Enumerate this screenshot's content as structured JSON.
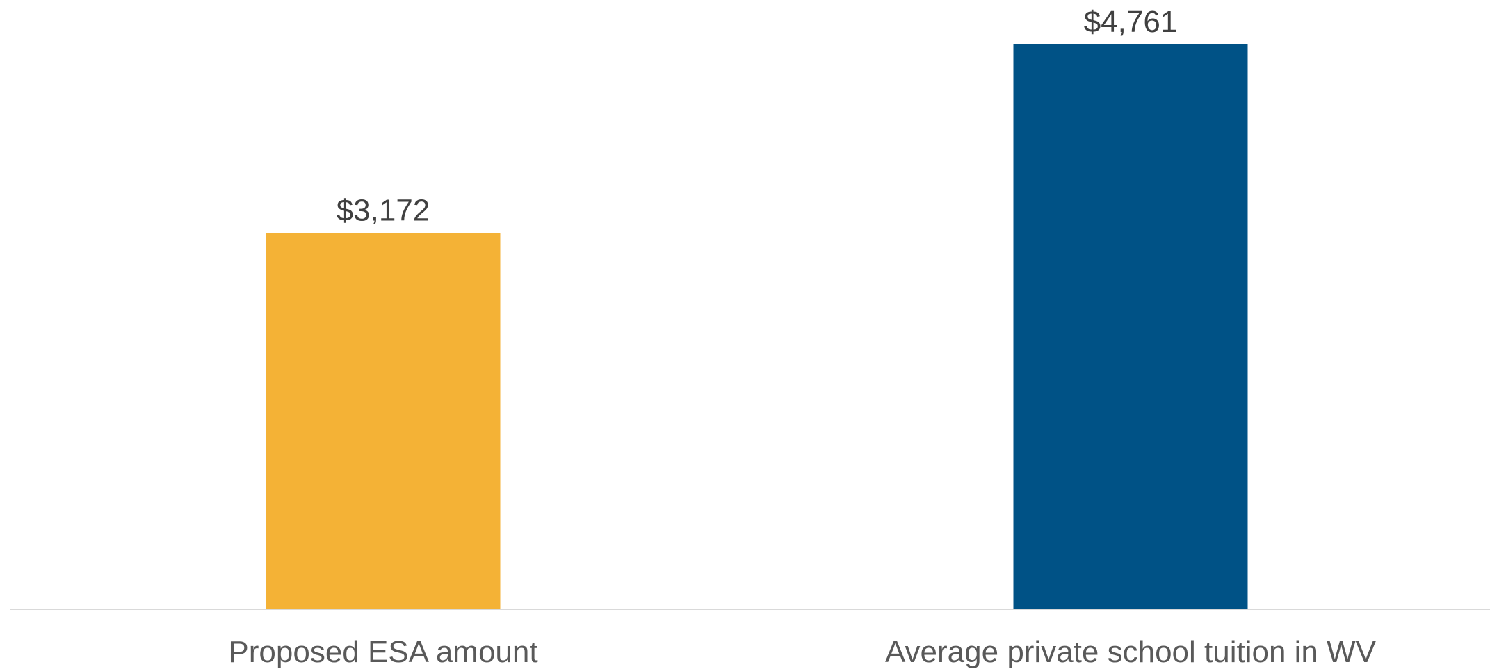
{
  "chart_data": {
    "type": "bar",
    "categories": [
      "Proposed ESA amount",
      "Average private school tuition in WV"
    ],
    "values": [
      3172,
      4761
    ],
    "data_labels": [
      "$3,172",
      "$4,761"
    ],
    "colors": [
      "#F4B236",
      "#005286"
    ],
    "ylim": [
      0,
      4761
    ],
    "grid": false,
    "legend": "none",
    "title": "",
    "xlabel": "",
    "ylabel": ""
  }
}
